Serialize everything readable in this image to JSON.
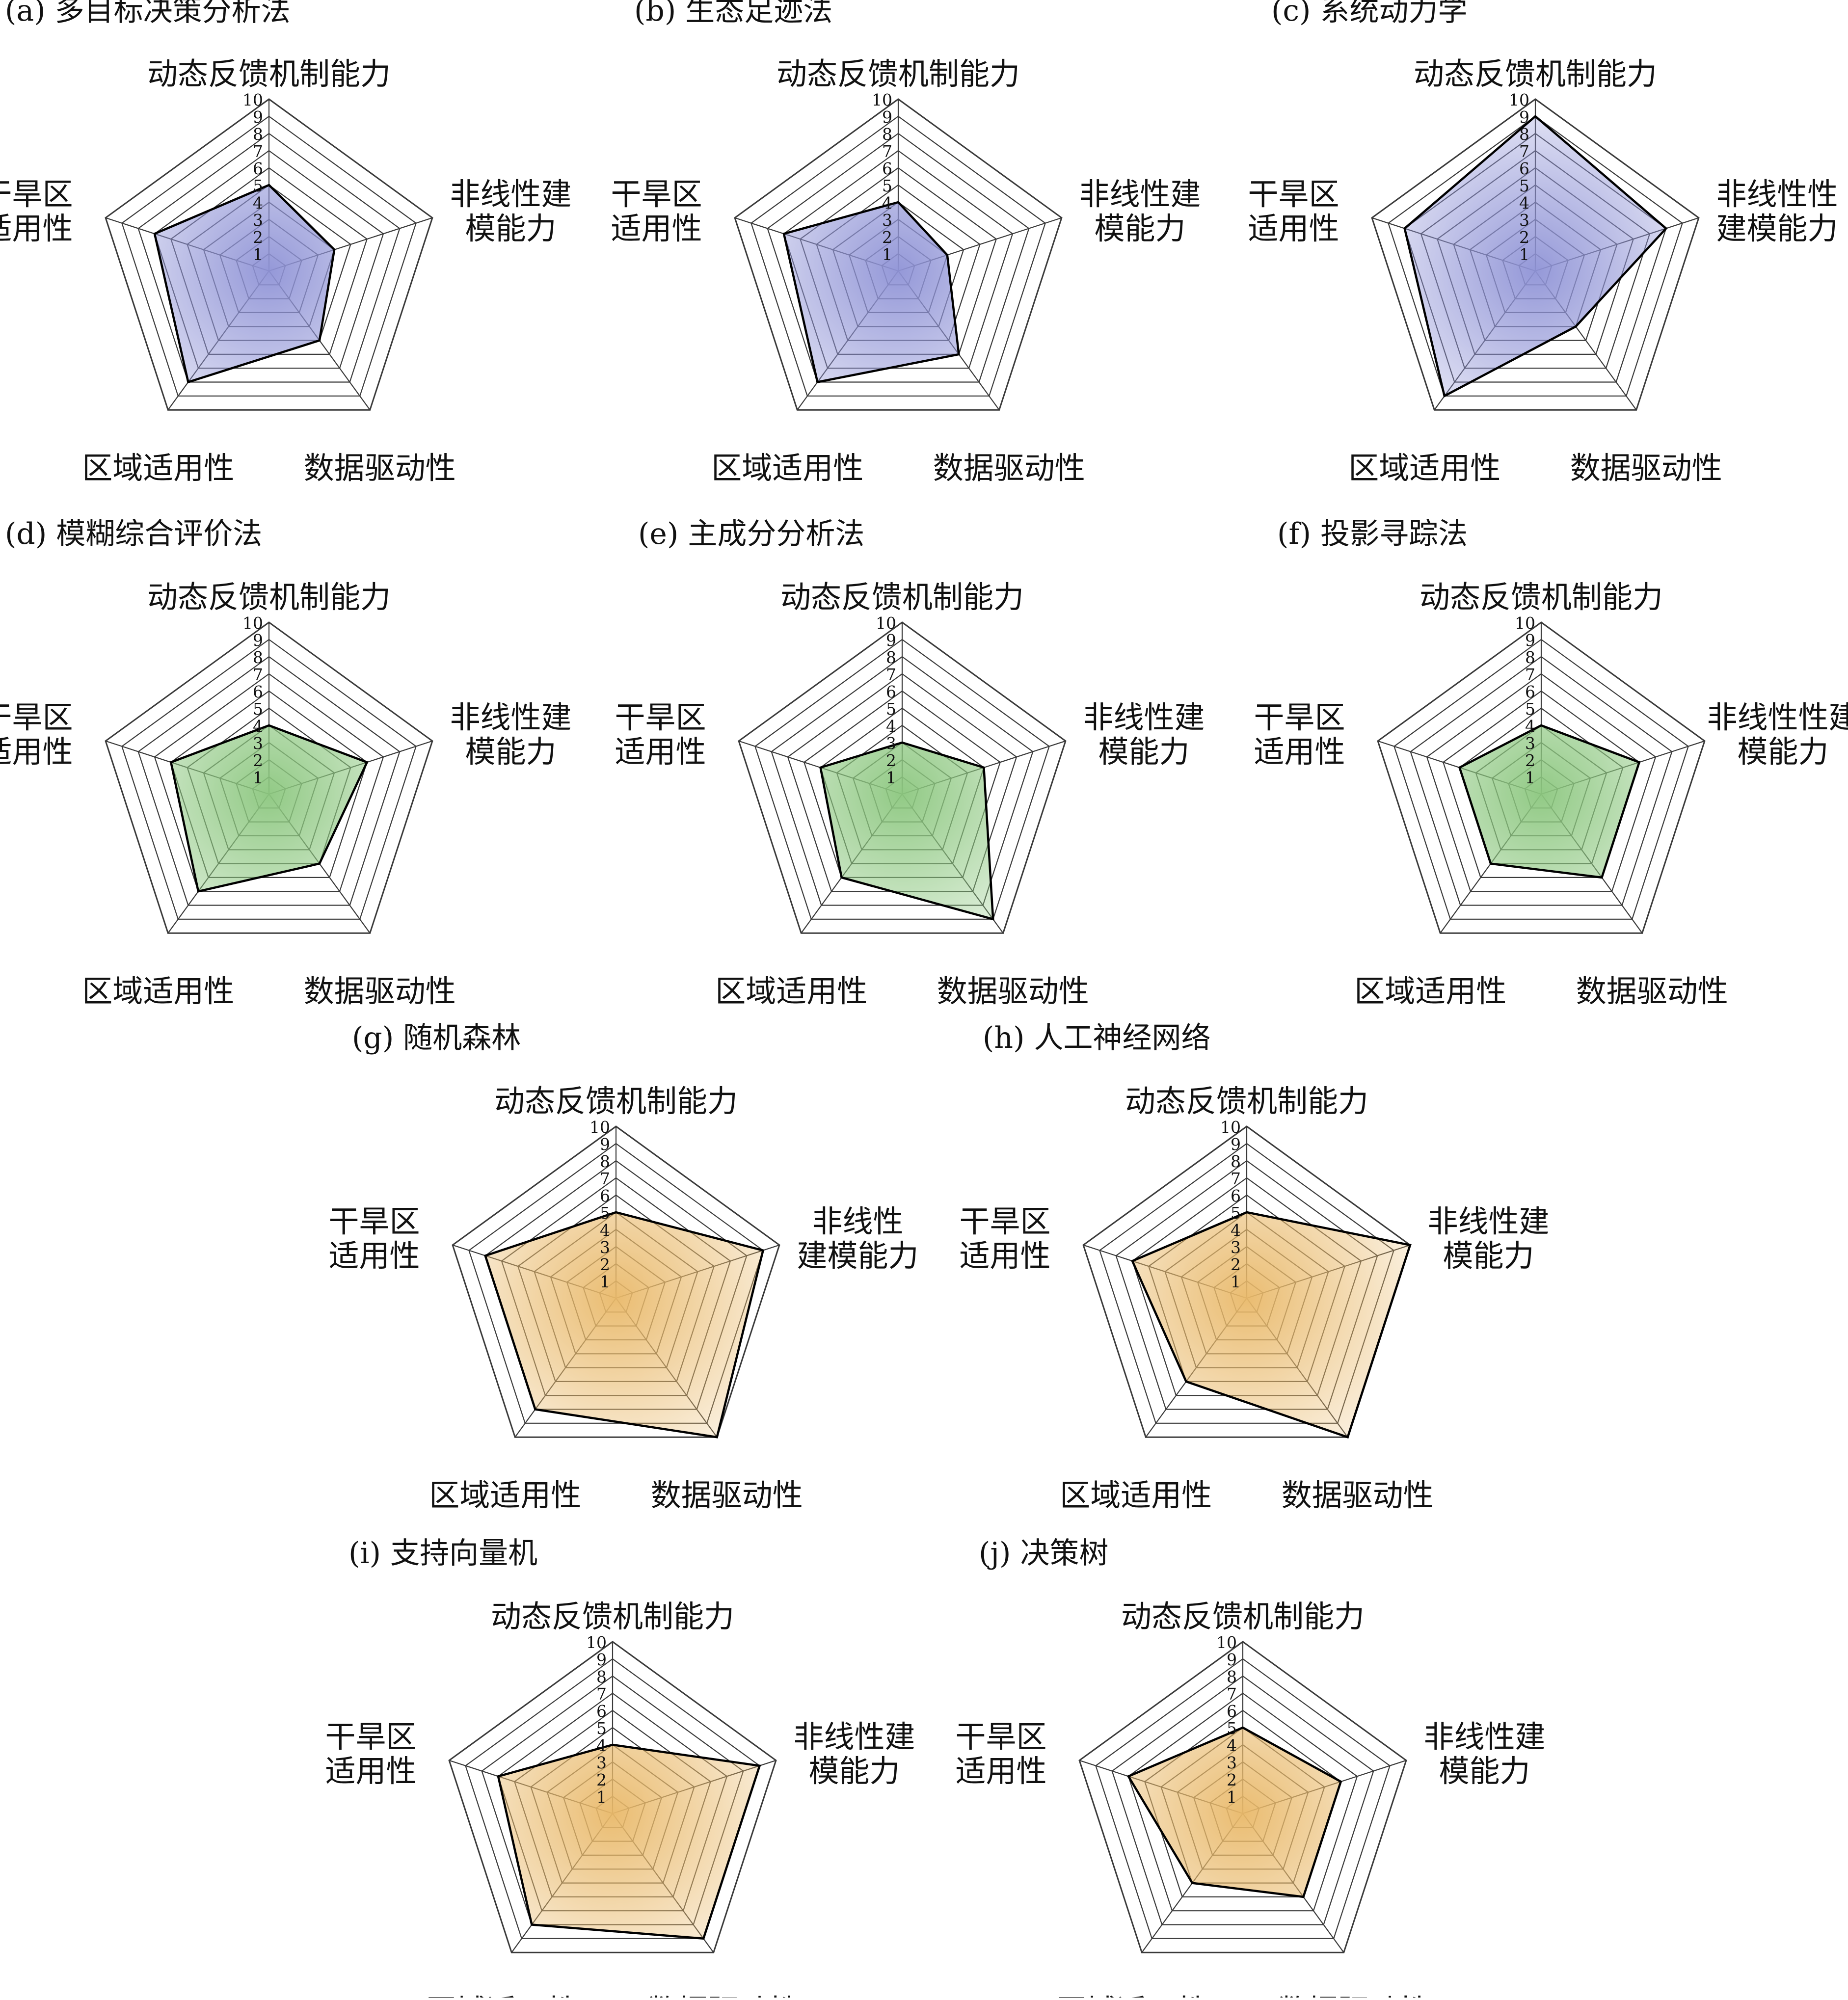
{
  "figure": {
    "axes": [
      "动态反馈机制能力",
      "非线性建模能力",
      "数据驱动性",
      "区域适用性",
      "干旱区适用性"
    ],
    "scale_ticks": [
      "1",
      "2",
      "3",
      "4",
      "5",
      "6",
      "7",
      "8",
      "9",
      "10"
    ],
    "colors": {
      "blue": "#8f93d6",
      "green": "#8cc77f",
      "orange": "#e9b96a",
      "grid": "#3a3a3a",
      "outline": "#000000"
    }
  },
  "chart_data": [
    {
      "type": "radar",
      "title": "(a) 多目标决策分析法",
      "color": "blue",
      "axis_labels": [
        [
          "动态反馈机制能力"
        ],
        [
          "非线性建",
          "模能力"
        ],
        [
          "数据驱动性"
        ],
        [
          "区域适用性"
        ],
        [
          "干旱区",
          "适用性"
        ]
      ],
      "rlim": [
        0,
        10
      ],
      "values": [
        5,
        4,
        5,
        8,
        7
      ]
    },
    {
      "type": "radar",
      "title": "(b) 生态足迹法",
      "color": "blue",
      "axis_labels": [
        [
          "动态反馈机制能力"
        ],
        [
          "非线性建",
          "模能力"
        ],
        [
          "数据驱动性"
        ],
        [
          "区域适用性"
        ],
        [
          "干旱区",
          "适用性"
        ]
      ],
      "rlim": [
        0,
        10
      ],
      "values": [
        4,
        3,
        6,
        8,
        7
      ]
    },
    {
      "type": "radar",
      "title": "(c) 系统动力学",
      "color": "blue",
      "axis_labels": [
        [
          "动态反馈机制能力"
        ],
        [
          "非线性性",
          "建模能力"
        ],
        [
          "数据驱动性"
        ],
        [
          "区域适用性"
        ],
        [
          "干旱区",
          "适用性"
        ]
      ],
      "rlim": [
        0,
        10
      ],
      "values": [
        9,
        8,
        4,
        9,
        8
      ]
    },
    {
      "type": "radar",
      "title": "(d) 模糊综合评价法",
      "color": "green",
      "axis_labels": [
        [
          "动态反馈机制能力"
        ],
        [
          "非线性建",
          "模能力"
        ],
        [
          "数据驱动性"
        ],
        [
          "区域适用性"
        ],
        [
          "干旱区",
          "适用性"
        ]
      ],
      "rlim": [
        0,
        10
      ],
      "values": [
        4,
        6,
        5,
        7,
        6
      ]
    },
    {
      "type": "radar",
      "title": "(e) 主成分分析法",
      "color": "green",
      "axis_labels": [
        [
          "动态反馈机制能力"
        ],
        [
          "非线性建",
          "模能力"
        ],
        [
          "数据驱动性"
        ],
        [
          "区域适用性"
        ],
        [
          "干旱区",
          "适用性"
        ]
      ],
      "rlim": [
        0,
        10
      ],
      "values": [
        3,
        5,
        9,
        6,
        5
      ]
    },
    {
      "type": "radar",
      "title": "(f) 投影寻踪法",
      "color": "green",
      "axis_labels": [
        [
          "动态反馈机制能力"
        ],
        [
          "非线性性建",
          "模能力"
        ],
        [
          "数据驱动性"
        ],
        [
          "区域适用性"
        ],
        [
          "干旱区",
          "适用性"
        ]
      ],
      "rlim": [
        0,
        10
      ],
      "values": [
        4,
        6,
        6,
        5,
        5
      ]
    },
    {
      "type": "radar",
      "title": "(g) 随机森林",
      "color": "orange",
      "axis_labels": [
        [
          "动态反馈机制能力"
        ],
        [
          "非线性",
          "建模能力"
        ],
        [
          "数据驱动性"
        ],
        [
          "区域适用性"
        ],
        [
          "干旱区",
          "适用性"
        ]
      ],
      "rlim": [
        0,
        10
      ],
      "values": [
        5,
        9,
        10,
        8,
        8
      ]
    },
    {
      "type": "radar",
      "title": "(h) 人工神经网络",
      "color": "orange",
      "axis_labels": [
        [
          "动态反馈机制能力"
        ],
        [
          "非线性建",
          "模能力"
        ],
        [
          "数据驱动性"
        ],
        [
          "区域适用性"
        ],
        [
          "干旱区",
          "适用性"
        ]
      ],
      "rlim": [
        0,
        10
      ],
      "values": [
        5,
        10,
        10,
        6,
        7
      ]
    },
    {
      "type": "radar",
      "title": "(i) 支持向量机",
      "color": "orange",
      "axis_labels": [
        [
          "动态反馈机制能力"
        ],
        [
          "非线性建",
          "模能力"
        ],
        [
          "数据驱动性"
        ],
        [
          "区域适用性"
        ],
        [
          "干旱区",
          "适用性"
        ]
      ],
      "rlim": [
        0,
        10
      ],
      "values": [
        4,
        9,
        9,
        8,
        7
      ]
    },
    {
      "type": "radar",
      "title": "(j) 决策树",
      "color": "orange",
      "axis_labels": [
        [
          "动态反馈机制能力"
        ],
        [
          "非线性建",
          "模能力"
        ],
        [
          "数据驱动性"
        ],
        [
          "区域适用性"
        ],
        [
          "干旱区",
          "适用性"
        ]
      ],
      "rlim": [
        0,
        10
      ],
      "values": [
        5,
        6,
        6,
        5,
        7
      ]
    }
  ]
}
